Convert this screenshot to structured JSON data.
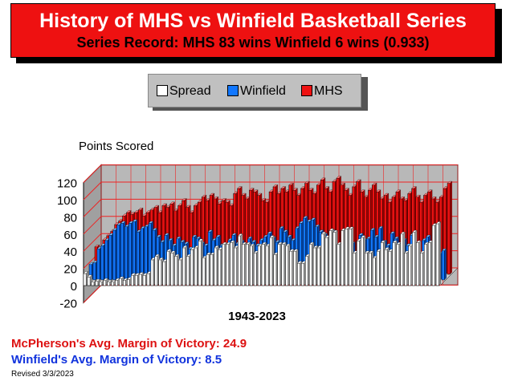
{
  "header": {
    "title": "History of MHS vs Winfield Basketball Series",
    "subtitle": "Series Record:  MHS 83 wins  Winfield 6 wins (0.933)"
  },
  "legend": [
    {
      "label": "Spread",
      "color": "#ffffff"
    },
    {
      "label": "Winfield",
      "color": "#1177ff"
    },
    {
      "label": "MHS",
      "color": "#ee1111"
    }
  ],
  "stats": {
    "mhs_margin": "McPherson's Avg. Margin of Victory: 24.9",
    "winfield_margin": "Winfield's Avg. Margin of Victory: 8.5"
  },
  "footer": {
    "revised": "Revised 3/3/2023"
  },
  "chart_data": {
    "type": "bar",
    "style": "3d-grouped",
    "ylabel": "Points Scored",
    "xlabel": "1943-2023",
    "ylim": [
      -20,
      120
    ],
    "yticks": [
      -20,
      0,
      20,
      40,
      60,
      80,
      100,
      120
    ],
    "grid": true,
    "legend_position": "top-center",
    "colors": {
      "mhs": "#ee1111",
      "winfield": "#1177ff",
      "spread": "#ffffff"
    },
    "series": [
      {
        "name": "MHS",
        "values": [
          32,
          30,
          40,
          45,
          50,
          58,
          62,
          68,
          72,
          70,
          72,
          75,
          68,
          72,
          75,
          78,
          72,
          80,
          78,
          82,
          74,
          80,
          86,
          78,
          72,
          80,
          84,
          90,
          86,
          92,
          88,
          82,
          86,
          84,
          80,
          94,
          100,
          92,
          88,
          98,
          96,
          92,
          86,
          84,
          96,
          102,
          94,
          100,
          96,
          104,
          98,
          92,
          100,
          106,
          98,
          94,
          104,
          110,
          100,
          96,
          108,
          112,
          104,
          98,
          92,
          102,
          108,
          96,
          90,
          98,
          104,
          96,
          88,
          92,
          84,
          90,
          96,
          88,
          86,
          94,
          100,
          90,
          84,
          92,
          96,
          88,
          84,
          90,
          100,
          106
        ]
      },
      {
        "name": "Winfield",
        "values": [
          18,
          20,
          36,
          40,
          46,
          52,
          58,
          64,
          66,
          62,
          66,
          68,
          56,
          60,
          62,
          66,
          58,
          50,
          44,
          52,
          46,
          40,
          48,
          44,
          42,
          36,
          50,
          48,
          42,
          40,
          56,
          46,
          50,
          40,
          38,
          46,
          52,
          42,
          44,
          40,
          48,
          44,
          40,
          46,
          50,
          54,
          48,
          44,
          60,
          56,
          50,
          46,
          60,
          66,
          72,
          68,
          70,
          62,
          56,
          52,
          48,
          56,
          40,
          36,
          44,
          38,
          42,
          30,
          52,
          46,
          48,
          58,
          50,
          60,
          44,
          40,
          54,
          48,
          36,
          46,
          40,
          52,
          38,
          30,
          46,
          50,
          36,
          40,
          30,
          34
        ]
      },
      {
        "name": "Spread",
        "values": [
          14,
          10,
          4,
          5,
          4,
          6,
          4,
          4,
          6,
          8,
          6,
          7,
          12,
          12,
          13,
          12,
          14,
          30,
          34,
          30,
          28,
          40,
          38,
          34,
          30,
          44,
          34,
          42,
          44,
          52,
          32,
          36,
          36,
          44,
          42,
          48,
          48,
          50,
          44,
          58,
          48,
          48,
          46,
          38,
          46,
          48,
          46,
          56,
          36,
          48,
          48,
          46,
          40,
          40,
          26,
          26,
          34,
          48,
          44,
          44,
          60,
          56,
          64,
          62,
          48,
          64,
          66,
          66,
          38,
          52,
          56,
          38,
          38,
          32,
          40,
          50,
          42,
          40,
          50,
          48,
          60,
          38,
          46,
          62,
          50,
          38,
          48,
          50,
          70,
          72
        ]
      }
    ]
  }
}
